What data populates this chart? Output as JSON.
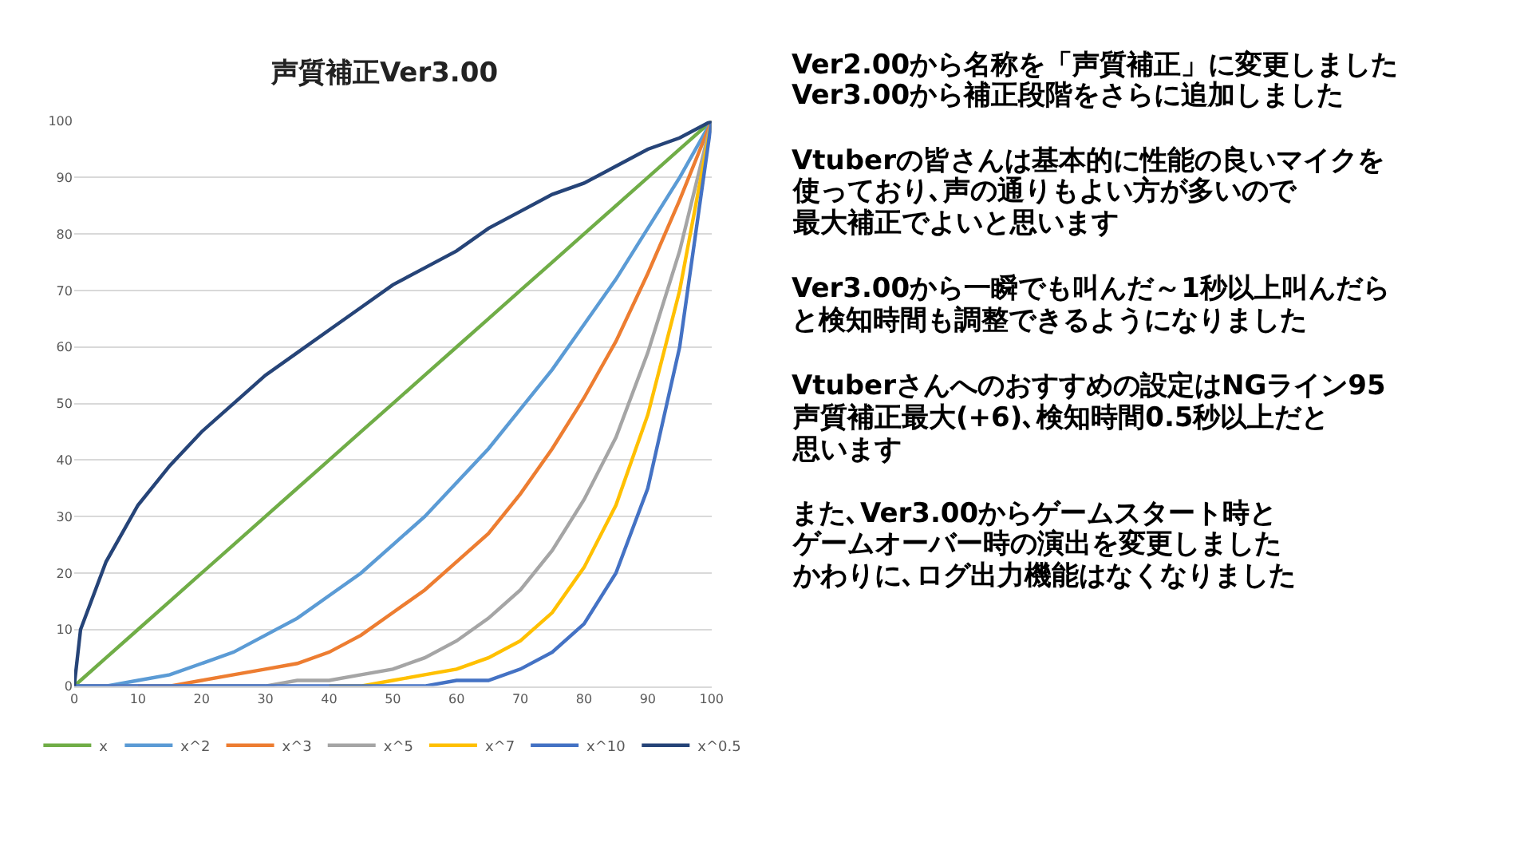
{
  "chart_data": {
    "type": "line",
    "title": "声質補正Ver3.00",
    "x": [
      0,
      1,
      5,
      10,
      15,
      20,
      25,
      30,
      35,
      40,
      45,
      50,
      55,
      60,
      65,
      70,
      75,
      80,
      85,
      90,
      95,
      100
    ],
    "series": [
      {
        "name": "x",
        "color": "#70ad47",
        "values": [
          0,
          1,
          5,
          10,
          15,
          20,
          25,
          30,
          35,
          40,
          45,
          50,
          55,
          60,
          65,
          70,
          75,
          80,
          85,
          90,
          95,
          100
        ]
      },
      {
        "name": "x^2",
        "color": "#5b9bd5",
        "values": [
          0,
          0,
          0,
          1,
          2,
          4,
          6,
          9,
          12,
          16,
          20,
          25,
          30,
          36,
          42,
          49,
          56,
          64,
          72,
          81,
          90,
          100
        ]
      },
      {
        "name": "x^3",
        "color": "#ed7d31",
        "values": [
          null,
          null,
          null,
          0,
          0,
          1,
          2,
          3,
          4,
          6,
          9,
          13,
          17,
          22,
          27,
          34,
          42,
          51,
          61,
          73,
          86,
          100
        ]
      },
      {
        "name": "x^5",
        "color": "#a5a5a5",
        "values": [
          0,
          0,
          0,
          0,
          0,
          0,
          0,
          0,
          1,
          1,
          2,
          3,
          5,
          8,
          12,
          17,
          24,
          33,
          44,
          59,
          77,
          100
        ]
      },
      {
        "name": "x^7",
        "color": "#ffc000",
        "values": [
          null,
          null,
          null,
          null,
          null,
          null,
          null,
          null,
          null,
          0,
          0,
          1,
          2,
          3,
          5,
          8,
          13,
          21,
          32,
          48,
          70,
          100
        ]
      },
      {
        "name": "x^10",
        "color": "#4472c4",
        "values": [
          0,
          0,
          0,
          0,
          0,
          0,
          0,
          0,
          0,
          0,
          0,
          0,
          0,
          1,
          1,
          3,
          6,
          11,
          20,
          35,
          60,
          100
        ]
      },
      {
        "name": "x^0.5",
        "color": "#264478",
        "values": [
          0,
          10,
          22,
          32,
          39,
          45,
          50,
          55,
          59,
          63,
          67,
          71,
          74,
          77,
          81,
          84,
          87,
          89,
          92,
          95,
          97,
          100
        ]
      }
    ],
    "xlim": [
      0,
      100
    ],
    "xticks": [
      0,
      10,
      20,
      30,
      40,
      50,
      60,
      70,
      80,
      90,
      100
    ],
    "ylim": [
      0,
      100
    ],
    "yticks": [
      0,
      10,
      20,
      30,
      40,
      50,
      60,
      70,
      80,
      90,
      100
    ],
    "grid": "y",
    "legend": "bottom",
    "marker": "none",
    "line_style": "solid",
    "annotations": [
      "Ver2.00から名称を「声質補正」に変更しました",
      "Ver3.00から補正段階をさらに追加しました",
      "Vtuberの皆さんは基本的に性能の良いマイクを",
      "使っており､声の通りもよい方が多いので",
      "最大補正でよいと思います",
      "Ver3.00から一瞬でも叫んだ～1秒以上叫んだら",
      "と検知時間も調整できるようになりました",
      "Vtuberさんへのおすすめの設定はNGライン95",
      "声質補正最大(+6)､検知時間0.5秒以上だと",
      "思います",
      "また､Ver3.00からゲームスタート時と",
      "ゲームオーバー時の演出を変更しました",
      "かわりに､ログ出力機能はなくなりました"
    ]
  }
}
